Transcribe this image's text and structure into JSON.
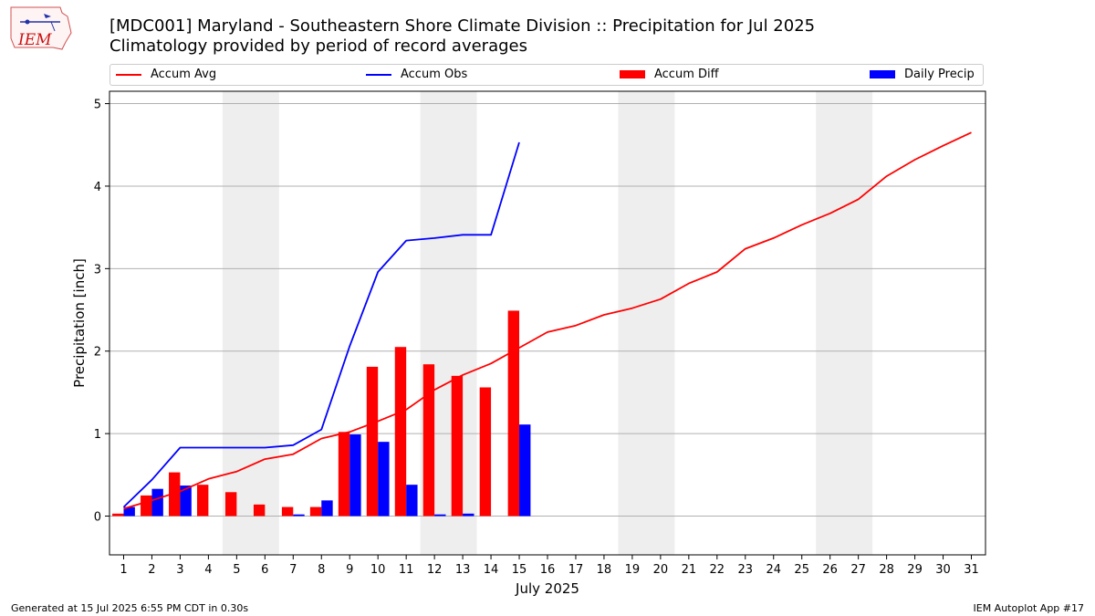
{
  "header": {
    "logo_text": "IEM",
    "title_line1": "[MDC001] Maryland - Southeastern Shore Climate Division :: Precipitation for Jul 2025",
    "title_line2": "Climatology provided by period of record averages"
  },
  "footer": {
    "generated": "Generated at 15 Jul 2025 6:55 PM CDT in 0.30s",
    "app": "IEM Autoplot App #17"
  },
  "colors": {
    "accum_avg": "#ff0000",
    "accum_obs": "#0000ff",
    "accum_diff": "#ff0000",
    "daily_precip": "#0000ff",
    "weekend_band": "#eeeeee",
    "grid": "#b0b0b0"
  },
  "chart_data": {
    "type": "bar",
    "xlabel": "July 2025",
    "ylabel": "Precipitation [inch]",
    "xlim": [
      0.5,
      31.5
    ],
    "ylim": [
      -0.47,
      5.15
    ],
    "yticks": [
      0,
      1,
      2,
      3,
      4,
      5
    ],
    "x": [
      1,
      2,
      3,
      4,
      5,
      6,
      7,
      8,
      9,
      10,
      11,
      12,
      13,
      14,
      15,
      16,
      17,
      18,
      19,
      20,
      21,
      22,
      23,
      24,
      25,
      26,
      27,
      28,
      29,
      30,
      31
    ],
    "x_tick_labels": [
      "1",
      "2",
      "3",
      "4",
      "5",
      "6",
      "7",
      "8",
      "9",
      "10",
      "11",
      "12",
      "13",
      "14",
      "15",
      "16",
      "17",
      "18",
      "19",
      "20",
      "21",
      "22",
      "23",
      "24",
      "25",
      "26",
      "27",
      "28",
      "29",
      "30",
      "31"
    ],
    "grid": "horizontal",
    "legend_position": "top",
    "weekend_bands": [
      [
        4.5,
        6.5
      ],
      [
        11.5,
        13.5
      ],
      [
        18.5,
        20.5
      ],
      [
        25.5,
        27.5
      ]
    ],
    "series": [
      {
        "name": "Accum Avg",
        "kind": "line",
        "x": [
          1,
          2,
          3,
          4,
          5,
          6,
          7,
          8,
          9,
          10,
          11,
          12,
          13,
          14,
          15,
          16,
          17,
          18,
          19,
          20,
          21,
          22,
          23,
          24,
          25,
          26,
          27,
          28,
          29,
          30,
          31
        ],
        "values": [
          0.09,
          0.19,
          0.3,
          0.45,
          0.54,
          0.69,
          0.75,
          0.94,
          1.02,
          1.15,
          1.29,
          1.53,
          1.71,
          1.85,
          2.04,
          2.23,
          2.31,
          2.44,
          2.52,
          2.63,
          2.82,
          2.96,
          3.24,
          3.37,
          3.53,
          3.67,
          3.84,
          4.12,
          4.32,
          4.49,
          4.65
        ]
      },
      {
        "name": "Accum Obs",
        "kind": "line",
        "x": [
          1,
          2,
          3,
          4,
          5,
          6,
          7,
          8,
          9,
          10,
          11,
          12,
          13,
          14,
          15
        ],
        "values": [
          0.11,
          0.44,
          0.83,
          0.83,
          0.83,
          0.83,
          0.86,
          1.05,
          2.06,
          2.96,
          3.34,
          3.37,
          3.41,
          3.41,
          4.53
        ]
      },
      {
        "name": "Accum Diff",
        "kind": "bar",
        "x": [
          1,
          2,
          3,
          4,
          5,
          6,
          7,
          8,
          9,
          10,
          11,
          12,
          13,
          14,
          15
        ],
        "values": [
          0.03,
          0.25,
          0.53,
          0.38,
          0.29,
          0.14,
          0.11,
          0.11,
          1.02,
          1.81,
          2.05,
          1.84,
          1.7,
          1.56,
          2.49
        ]
      },
      {
        "name": "Daily Precip",
        "kind": "bar",
        "x": [
          1,
          2,
          3,
          4,
          5,
          6,
          7,
          8,
          9,
          10,
          11,
          12,
          13,
          14,
          15
        ],
        "values": [
          0.11,
          0.33,
          0.37,
          0,
          0,
          0,
          0.02,
          0.19,
          0.99,
          0.9,
          0.38,
          0.02,
          0.03,
          0,
          1.11
        ]
      }
    ]
  }
}
